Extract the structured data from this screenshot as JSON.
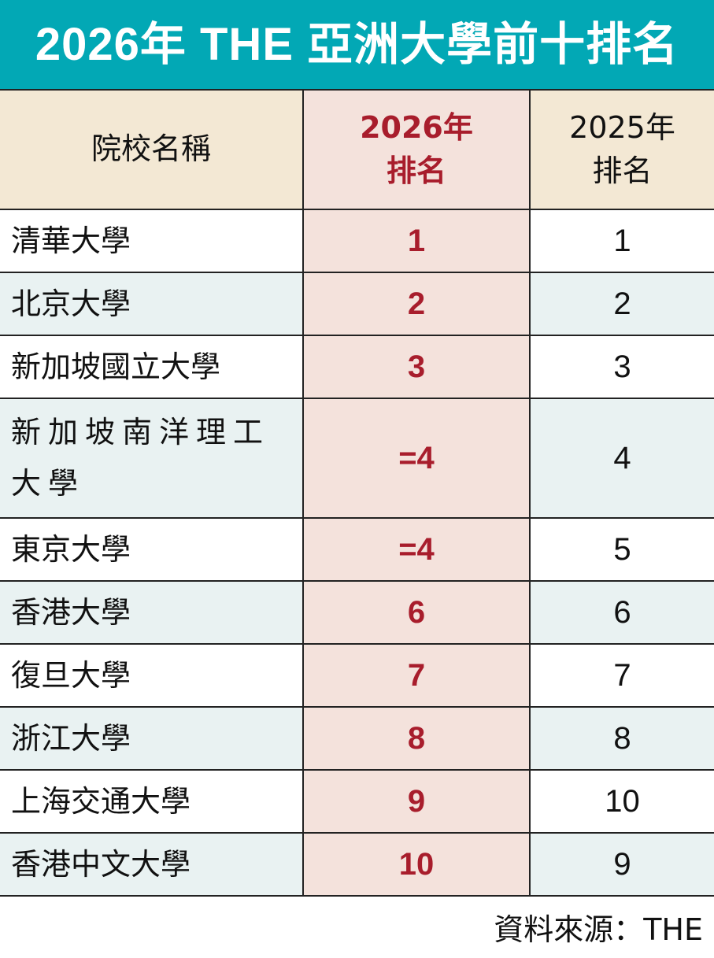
{
  "title": "2026年 THE 亞洲大學前十排名",
  "colors": {
    "title_bg": "#02a8b5",
    "header_bg": "#f3e8d4",
    "rank2026_bg": "#f4e2dc",
    "rank2026_text": "#a81d2c",
    "alt_row_bg": "#e9f2f2"
  },
  "chart_data": {
    "type": "table",
    "title": "2026年 THE 亞洲大學前十排名",
    "columns": [
      "院校名稱",
      "2026年排名",
      "2025年排名"
    ],
    "rows": [
      {
        "name": "清華大學",
        "rank_2026": "1",
        "rank_2025": "1"
      },
      {
        "name": "北京大學",
        "rank_2026": "2",
        "rank_2025": "2"
      },
      {
        "name": "新加坡國立大學",
        "rank_2026": "3",
        "rank_2025": "3"
      },
      {
        "name": "新加坡南洋理工大學",
        "rank_2026": "=4",
        "rank_2025": "4"
      },
      {
        "name": "東京大學",
        "rank_2026": "=4",
        "rank_2025": "5"
      },
      {
        "name": "香港大學",
        "rank_2026": "6",
        "rank_2025": "6"
      },
      {
        "name": "復旦大學",
        "rank_2026": "7",
        "rank_2025": "7"
      },
      {
        "name": "浙江大學",
        "rank_2026": "8",
        "rank_2025": "8"
      },
      {
        "name": "上海交通大學",
        "rank_2026": "9",
        "rank_2025": "10"
      },
      {
        "name": "香港中文大學",
        "rank_2026": "10",
        "rank_2025": "9"
      }
    ],
    "source": "資料來源：THE"
  },
  "header": {
    "col1": "院校名稱",
    "col2_line1": "2026年",
    "col2_line2": "排名",
    "col3_line1": "2025年",
    "col3_line2": "排名"
  }
}
